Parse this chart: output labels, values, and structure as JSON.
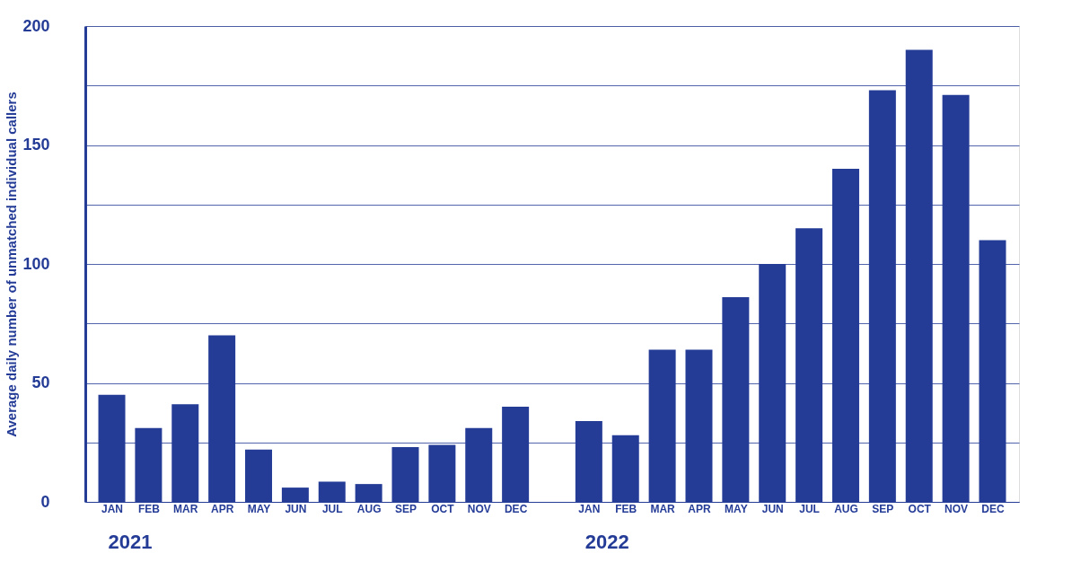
{
  "chart_data": {
    "type": "bar",
    "ylabel": "Average daily number of unmatched individual callers",
    "categories": [
      "JAN",
      "FEB",
      "MAR",
      "APR",
      "MAY",
      "JUN",
      "JUL",
      "AUG",
      "SEP",
      "OCT",
      "NOV",
      "DEC",
      "JAN",
      "FEB",
      "MAR",
      "APR",
      "MAY",
      "JUN",
      "JUL",
      "AUG",
      "SEP",
      "OCT",
      "NOV",
      "DEC"
    ],
    "values": [
      45,
      31,
      41,
      70,
      22,
      6,
      8.5,
      7.5,
      23,
      24,
      31,
      40,
      34,
      28,
      64,
      64,
      86,
      100,
      115,
      140,
      173,
      190,
      171,
      110
    ],
    "color": "#253c97",
    "ylim": [
      0,
      200
    ],
    "yticks": [
      0,
      {
        "value": 25,
        "label": null
      },
      50,
      {
        "value": 75,
        "label": null
      },
      100,
      {
        "value": 125,
        "label": null
      },
      150,
      {
        "value": 175,
        "label": null
      },
      200
    ],
    "grid": "y",
    "annotations": [
      "2021",
      "2022"
    ]
  }
}
